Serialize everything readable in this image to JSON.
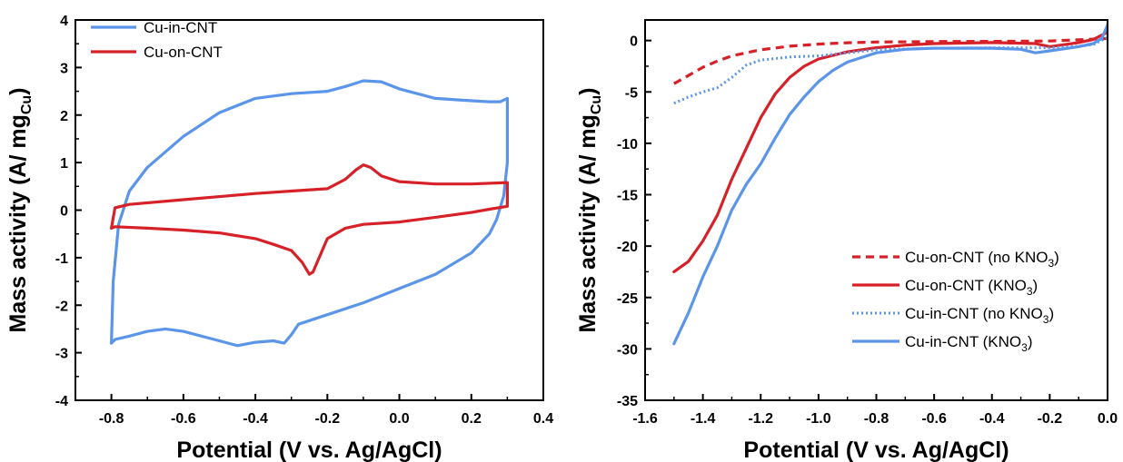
{
  "chart_data": [
    {
      "type": "line",
      "panel": "left",
      "xlabel": "Potential (V vs. Ag/AgCl)",
      "ylabel_main": "Mass activity (A/ mg",
      "ylabel_sub": "Cu",
      "ylabel_close": ")",
      "xlim": [
        -0.9,
        0.4
      ],
      "ylim": [
        -4,
        4
      ],
      "xticks": [
        -0.8,
        -0.6,
        -0.4,
        -0.2,
        0.0,
        0.2,
        0.4
      ],
      "xtick_labels": [
        "-0.8",
        "-0.6",
        "-0.4",
        "-0.2",
        "0.0",
        "0.2",
        "0.4"
      ],
      "yticks": [
        -4,
        -3,
        -2,
        -1,
        0,
        1,
        2,
        3,
        4
      ],
      "ytick_labels": [
        "-4",
        "-3",
        "-2",
        "-1",
        "0",
        "1",
        "2",
        "3",
        "4"
      ],
      "legend_position": "top-left",
      "series": [
        {
          "name": "Cu-in-CNT",
          "color": "#5b95ea",
          "dash": "solid",
          "x": [
            -0.8,
            -0.795,
            -0.78,
            -0.75,
            -0.7,
            -0.6,
            -0.5,
            -0.4,
            -0.3,
            -0.2,
            -0.15,
            -0.1,
            -0.05,
            0.0,
            0.1,
            0.2,
            0.25,
            0.28,
            0.3,
            0.3,
            0.29,
            0.27,
            0.25,
            0.2,
            0.1,
            0.0,
            -0.1,
            -0.2,
            -0.28,
            -0.3,
            -0.32,
            -0.35,
            -0.4,
            -0.45,
            -0.5,
            -0.6,
            -0.65,
            -0.7,
            -0.75,
            -0.79,
            -0.8,
            -0.8
          ],
          "y": [
            -2.8,
            -1.5,
            -0.3,
            0.4,
            0.9,
            1.55,
            2.05,
            2.35,
            2.45,
            2.5,
            2.6,
            2.72,
            2.7,
            2.55,
            2.35,
            2.3,
            2.28,
            2.28,
            2.35,
            1.0,
            0.3,
            -0.2,
            -0.5,
            -0.9,
            -1.35,
            -1.65,
            -1.95,
            -2.2,
            -2.4,
            -2.62,
            -2.8,
            -2.75,
            -2.78,
            -2.85,
            -2.75,
            -2.55,
            -2.5,
            -2.55,
            -2.65,
            -2.72,
            -2.8,
            -2.8
          ]
        },
        {
          "name": "Cu-on-CNT",
          "color": "#d72128",
          "dash": "solid",
          "x": [
            -0.8,
            -0.79,
            -0.75,
            -0.6,
            -0.4,
            -0.3,
            -0.2,
            -0.15,
            -0.12,
            -0.1,
            -0.08,
            -0.05,
            0.0,
            0.1,
            0.2,
            0.3,
            0.3,
            0.25,
            0.2,
            0.1,
            0.0,
            -0.1,
            -0.15,
            -0.2,
            -0.22,
            -0.24,
            -0.25,
            -0.27,
            -0.3,
            -0.35,
            -0.4,
            -0.5,
            -0.6,
            -0.7,
            -0.79,
            -0.8
          ],
          "y": [
            -0.38,
            0.05,
            0.12,
            0.22,
            0.35,
            0.4,
            0.45,
            0.65,
            0.85,
            0.95,
            0.9,
            0.72,
            0.6,
            0.55,
            0.55,
            0.58,
            0.08,
            0.02,
            -0.05,
            -0.15,
            -0.25,
            -0.3,
            -0.38,
            -0.6,
            -0.95,
            -1.3,
            -1.35,
            -1.1,
            -0.85,
            -0.72,
            -0.6,
            -0.48,
            -0.42,
            -0.38,
            -0.35,
            -0.38
          ]
        }
      ]
    },
    {
      "type": "line",
      "panel": "right",
      "xlabel": "Potential (V vs. Ag/AgCl)",
      "ylabel_main": "Mass activity (A/ mg",
      "ylabel_sub": "Cu",
      "ylabel_close": ")",
      "xlim": [
        -1.6,
        0.0
      ],
      "ylim": [
        -35,
        2
      ],
      "xticks": [
        -1.6,
        -1.4,
        -1.2,
        -1.0,
        -0.8,
        -0.6,
        -0.4,
        -0.2,
        0.0
      ],
      "xtick_labels": [
        "-1.6",
        "-1.4",
        "-1.2",
        "-1.0",
        "-0.8",
        "-0.6",
        "-0.4",
        "-0.2",
        "0.0"
      ],
      "yticks": [
        -35,
        -30,
        -25,
        -20,
        -15,
        -10,
        -5,
        0
      ],
      "ytick_labels": [
        "-35",
        "-30",
        "-25",
        "-20",
        "-15",
        "-10",
        "-5",
        "0"
      ],
      "legend_position": "bottom-right",
      "series": [
        {
          "name_main": "Cu-on-CNT (no KNO",
          "name_sub": "3",
          "name_close": ")",
          "color": "#d72128",
          "dash": "dashed",
          "x": [
            -1.5,
            -1.45,
            -1.4,
            -1.35,
            -1.3,
            -1.2,
            -1.1,
            -1.0,
            -0.9,
            -0.8,
            -0.6,
            -0.4,
            -0.2,
            0.0
          ],
          "y": [
            -4.2,
            -3.4,
            -2.6,
            -2.0,
            -1.5,
            -0.9,
            -0.55,
            -0.35,
            -0.22,
            -0.15,
            -0.1,
            -0.08,
            -0.05,
            0.2
          ]
        },
        {
          "name_main": "Cu-on-CNT (KNO",
          "name_sub": "3",
          "name_close": ")",
          "color": "#d72128",
          "dash": "solid",
          "x": [
            -1.5,
            -1.45,
            -1.4,
            -1.35,
            -1.3,
            -1.25,
            -1.2,
            -1.15,
            -1.1,
            -1.05,
            -1.0,
            -0.9,
            -0.8,
            -0.7,
            -0.6,
            -0.4,
            -0.25,
            -0.2,
            -0.15,
            -0.1,
            -0.05,
            0.0
          ],
          "y": [
            -22.5,
            -21.5,
            -19.5,
            -17.0,
            -13.5,
            -10.5,
            -7.5,
            -5.2,
            -3.6,
            -2.5,
            -1.8,
            -1.1,
            -0.7,
            -0.45,
            -0.3,
            -0.2,
            -0.3,
            -0.6,
            -0.4,
            -0.2,
            0.1,
            0.8
          ]
        },
        {
          "name_main": "Cu-in-CNT (no KNO",
          "name_sub": "3",
          "name_close": ")",
          "color": "#5b95ea",
          "dash": "dotted",
          "x": [
            -1.5,
            -1.45,
            -1.4,
            -1.35,
            -1.3,
            -1.25,
            -1.2,
            -1.1,
            -1.0,
            -0.9,
            -0.8,
            -0.6,
            -0.4,
            -0.2,
            -0.1,
            -0.05,
            0.0
          ],
          "y": [
            -6.1,
            -5.5,
            -5.0,
            -4.6,
            -3.6,
            -2.4,
            -1.9,
            -1.6,
            -1.5,
            -1.2,
            -0.9,
            -0.75,
            -0.7,
            -0.7,
            -0.55,
            -0.4,
            0.3
          ]
        },
        {
          "name_main": "Cu-in-CNT (KNO",
          "name_sub": "3",
          "name_close": ")",
          "color": "#5b95ea",
          "dash": "solid",
          "x": [
            -1.5,
            -1.45,
            -1.4,
            -1.35,
            -1.3,
            -1.25,
            -1.2,
            -1.15,
            -1.1,
            -1.05,
            -1.0,
            -0.95,
            -0.9,
            -0.8,
            -0.7,
            -0.6,
            -0.4,
            -0.3,
            -0.25,
            -0.2,
            -0.1,
            -0.05,
            -0.02,
            0.0
          ],
          "y": [
            -29.5,
            -26.5,
            -23.0,
            -20.0,
            -16.5,
            -14.0,
            -12.0,
            -9.5,
            -7.2,
            -5.5,
            -4.0,
            -2.9,
            -2.1,
            -1.2,
            -0.85,
            -0.75,
            -0.75,
            -0.85,
            -1.2,
            -1.0,
            -0.6,
            -0.3,
            0.2,
            1.5
          ]
        }
      ]
    }
  ]
}
